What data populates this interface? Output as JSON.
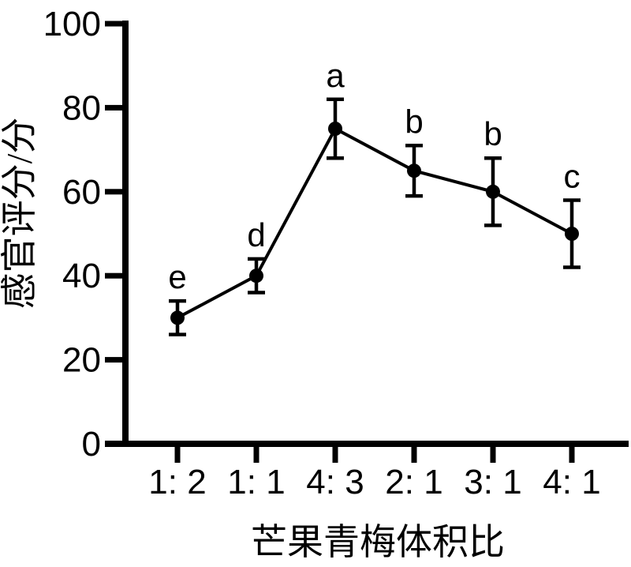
{
  "chart_data": {
    "type": "line",
    "title": "",
    "xlabel": "芒果青梅体积比",
    "ylabel": "感官评分/分",
    "categories": [
      "1: 2",
      "1: 1",
      "4: 3",
      "2: 1",
      "3: 1",
      "4: 1"
    ],
    "series": [
      {
        "name": "感官评分",
        "values": [
          30,
          40,
          75,
          65,
          60,
          50
        ],
        "errors": [
          4,
          4,
          7,
          6,
          8,
          8
        ],
        "point_labels": [
          "e",
          "d",
          "a",
          "b",
          "b",
          "c"
        ]
      }
    ],
    "ylim": [
      0,
      100
    ],
    "yticks": [
      0,
      20,
      40,
      60,
      80,
      100
    ],
    "grid": false,
    "legend": false,
    "marker": "filled-circle",
    "line_color": "#000000",
    "background_color": "#ffffff"
  }
}
